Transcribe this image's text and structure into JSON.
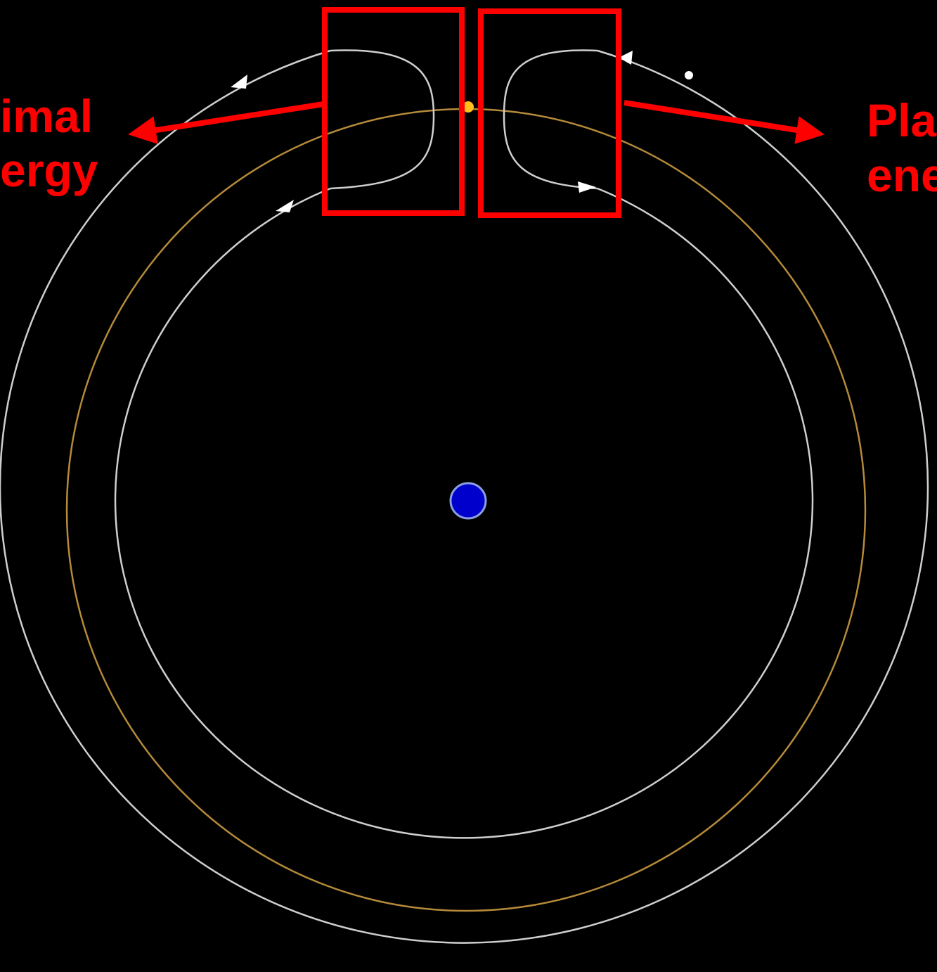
{
  "labels": {
    "left": [
      "imal",
      "ergy"
    ],
    "right": [
      "Pla",
      "ene"
    ]
  }
}
